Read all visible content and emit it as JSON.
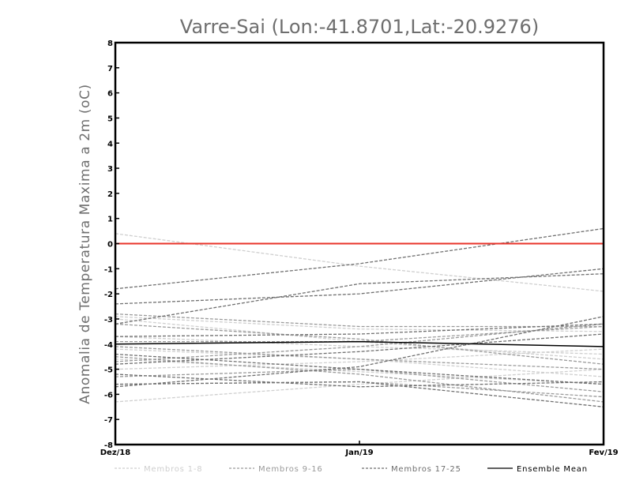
{
  "chart_data": {
    "type": "line",
    "title": "Varre-Sai (Lon:-41.8701,Lat:-20.9276)",
    "ylabel": "Anomalia de Temperatura Maxima a 2m (oC)",
    "xlabel": "",
    "categories": [
      "Dez/18",
      "Jan/19",
      "Fev/19"
    ],
    "yticks": [
      "8",
      "7",
      "6",
      "5",
      "4",
      "3",
      "2",
      "1",
      "0",
      "-1",
      "-2",
      "-3",
      "-4",
      "-5",
      "-6",
      "-7",
      "-8"
    ],
    "ylim": [
      -8,
      8
    ],
    "grid": false,
    "reference_line": {
      "y": 0,
      "color": "#e8332a"
    },
    "groups": [
      {
        "name": "Membros 1-8",
        "color": "#cfcfcf",
        "dashed": true,
        "lines": [
          [
            0.4,
            -0.9,
            -1.9
          ],
          [
            -6.3,
            -5.6,
            -5.0
          ],
          [
            -4.2,
            -4.6,
            -5.3
          ],
          [
            -3.0,
            -3.9,
            -4.6
          ],
          [
            -5.0,
            -4.7,
            -4.2
          ],
          [
            -2.9,
            -3.4,
            -3.5
          ],
          [
            -4.6,
            -5.1,
            -5.6
          ],
          [
            -3.7,
            -4.1,
            -4.4
          ]
        ]
      },
      {
        "name": "Membros 9-16",
        "color": "#9a9a9a",
        "dashed": true,
        "lines": [
          [
            -3.2,
            -3.8,
            -4.8
          ],
          [
            -3.9,
            -3.9,
            -3.3
          ],
          [
            -4.5,
            -5.2,
            -6.3
          ],
          [
            -5.3,
            -5.0,
            -5.9
          ],
          [
            -2.8,
            -3.3,
            -3.3
          ],
          [
            -4.1,
            -4.6,
            -5.0
          ],
          [
            -4.7,
            -4.1,
            -3.2
          ],
          [
            -5.6,
            -5.5,
            -6.1
          ]
        ]
      },
      {
        "name": "Membros 17-25",
        "color": "#6f6f6f",
        "dashed": true,
        "lines": [
          [
            -1.8,
            -0.8,
            0.6
          ],
          [
            -2.4,
            -2.0,
            -1.0
          ],
          [
            -3.2,
            -1.6,
            -1.2
          ],
          [
            -5.7,
            -4.9,
            -2.9
          ],
          [
            -4.4,
            -5.0,
            -5.6
          ],
          [
            -5.2,
            -5.7,
            -5.5
          ],
          [
            -4.8,
            -4.3,
            -3.6
          ],
          [
            -3.7,
            -3.6,
            -3.2
          ],
          [
            -5.6,
            -5.5,
            -6.5
          ]
        ]
      },
      {
        "name": "Ensemble Mean",
        "color": "#000000",
        "dashed": false,
        "lines": [
          [
            -4.0,
            -3.9,
            -4.1
          ]
        ]
      }
    ]
  }
}
